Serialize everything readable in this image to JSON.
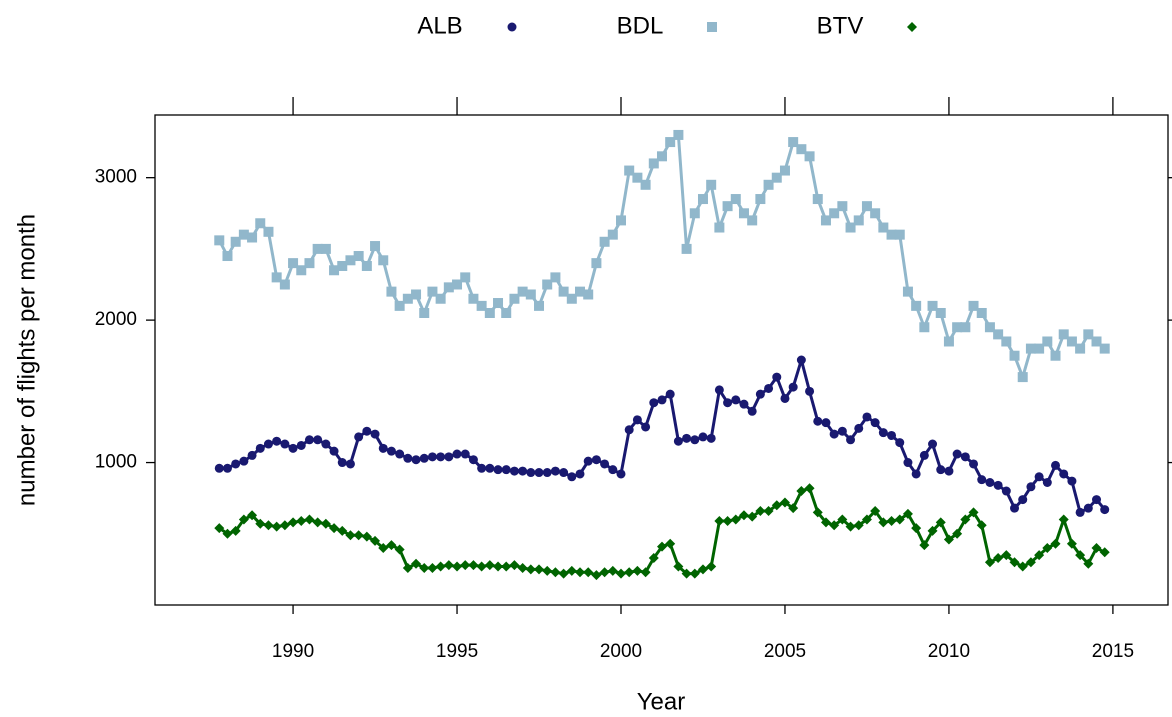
{
  "chart_data": {
    "type": "line",
    "xlabel": "Year",
    "ylabel": "number of flights per month",
    "x": [
      1987.75,
      1988,
      1988.25,
      1988.5,
      1988.75,
      1989,
      1989.25,
      1989.5,
      1989.75,
      1990,
      1990.25,
      1990.5,
      1990.75,
      1991,
      1991.25,
      1991.5,
      1991.75,
      1992,
      1992.25,
      1992.5,
      1992.75,
      1993,
      1993.25,
      1993.5,
      1993.75,
      1994,
      1994.25,
      1994.5,
      1994.75,
      1995,
      1995.25,
      1995.5,
      1995.75,
      1996,
      1996.25,
      1996.5,
      1996.75,
      1997,
      1997.25,
      1997.5,
      1997.75,
      1998,
      1998.25,
      1998.5,
      1998.75,
      1999,
      1999.25,
      1999.5,
      1999.75,
      2000,
      2000.25,
      2000.5,
      2000.75,
      2001,
      2001.25,
      2001.5,
      2001.75,
      2002,
      2002.25,
      2002.5,
      2002.75,
      2003,
      2003.25,
      2003.5,
      2003.75,
      2004,
      2004.25,
      2004.5,
      2004.75,
      2005,
      2005.25,
      2005.5,
      2005.75,
      2006,
      2006.25,
      2006.5,
      2006.75,
      2007,
      2007.25,
      2007.5,
      2007.75,
      2008,
      2008.25,
      2008.5,
      2008.75,
      2009,
      2009.25,
      2009.5,
      2009.75,
      2010,
      2010.25,
      2010.5,
      2010.75,
      2011,
      2011.25,
      2011.5,
      2011.75,
      2012,
      2012.25,
      2012.5,
      2012.75,
      2013,
      2013.25,
      2013.5,
      2013.75,
      2014,
      2014.25,
      2014.5,
      2014.75
    ],
    "series": [
      {
        "name": "ALB",
        "color": "#191970",
        "marker": "circle",
        "values": [
          960,
          960,
          990,
          1010,
          1050,
          1100,
          1130,
          1150,
          1130,
          1100,
          1120,
          1160,
          1160,
          1130,
          1080,
          1000,
          990,
          1180,
          1220,
          1200,
          1100,
          1080,
          1060,
          1030,
          1020,
          1030,
          1040,
          1040,
          1040,
          1060,
          1060,
          1020,
          960,
          960,
          950,
          950,
          940,
          940,
          930,
          930,
          930,
          940,
          930,
          900,
          920,
          1010,
          1020,
          990,
          950,
          920,
          1230,
          1300,
          1250,
          1420,
          1440,
          1480,
          1150,
          1170,
          1160,
          1180,
          1170,
          1510,
          1420,
          1440,
          1410,
          1360,
          1480,
          1520,
          1600,
          1450,
          1530,
          1720,
          1500,
          1290,
          1280,
          1200,
          1220,
          1160,
          1240,
          1320,
          1280,
          1210,
          1190,
          1140,
          1000,
          920,
          1050,
          1130,
          950,
          940,
          1060,
          1040,
          990,
          880,
          860,
          840,
          800,
          680,
          740,
          830,
          900,
          860,
          980,
          920,
          870,
          650,
          680,
          740,
          670
        ]
      },
      {
        "name": "BDL",
        "color": "#91b7cb",
        "marker": "square",
        "values": [
          2560,
          2450,
          2550,
          2600,
          2580,
          2680,
          2620,
          2300,
          2250,
          2400,
          2350,
          2400,
          2500,
          2500,
          2350,
          2380,
          2420,
          2450,
          2380,
          2520,
          2420,
          2200,
          2100,
          2150,
          2180,
          2050,
          2200,
          2150,
          2230,
          2250,
          2300,
          2150,
          2100,
          2050,
          2120,
          2050,
          2150,
          2200,
          2180,
          2100,
          2250,
          2300,
          2200,
          2150,
          2200,
          2180,
          2400,
          2550,
          2600,
          2700,
          3050,
          3000,
          2950,
          3100,
          3150,
          3250,
          3300,
          2500,
          2750,
          2850,
          2950,
          2650,
          2800,
          2850,
          2750,
          2700,
          2850,
          2950,
          3000,
          3050,
          3250,
          3200,
          3150,
          2850,
          2700,
          2750,
          2800,
          2650,
          2700,
          2800,
          2750,
          2650,
          2600,
          2600,
          2200,
          2100,
          1950,
          2100,
          2050,
          1850,
          1950,
          1950,
          2100,
          2050,
          1950,
          1900,
          1850,
          1750,
          1600,
          1800,
          1800,
          1850,
          1750,
          1900,
          1850,
          1800,
          1900,
          1850,
          1800
        ]
      },
      {
        "name": "BTV",
        "color": "#006400",
        "marker": "diamond",
        "values": [
          540,
          500,
          520,
          600,
          630,
          570,
          560,
          550,
          560,
          580,
          590,
          600,
          580,
          570,
          540,
          520,
          490,
          490,
          480,
          450,
          400,
          420,
          390,
          260,
          290,
          260,
          260,
          270,
          280,
          270,
          280,
          280,
          270,
          280,
          270,
          270,
          280,
          260,
          250,
          250,
          240,
          230,
          220,
          240,
          230,
          230,
          210,
          230,
          240,
          220,
          230,
          240,
          230,
          330,
          410,
          430,
          270,
          220,
          220,
          250,
          270,
          590,
          590,
          600,
          630,
          620,
          660,
          660,
          700,
          720,
          680,
          800,
          820,
          650,
          580,
          560,
          600,
          550,
          560,
          600,
          660,
          580,
          590,
          600,
          640,
          540,
          420,
          520,
          580,
          460,
          500,
          600,
          650,
          560,
          300,
          330,
          350,
          300,
          270,
          300,
          350,
          400,
          430,
          600,
          430,
          350,
          290,
          400,
          370
        ]
      }
    ],
    "xlim": [
      1985.79,
      2016.68
    ],
    "xticks": [
      1990,
      1995,
      2000,
      2005,
      2010,
      2015
    ],
    "ylim": [
      0,
      3440
    ],
    "yticks": [
      1000,
      2000,
      3000
    ],
    "legend": "top"
  }
}
